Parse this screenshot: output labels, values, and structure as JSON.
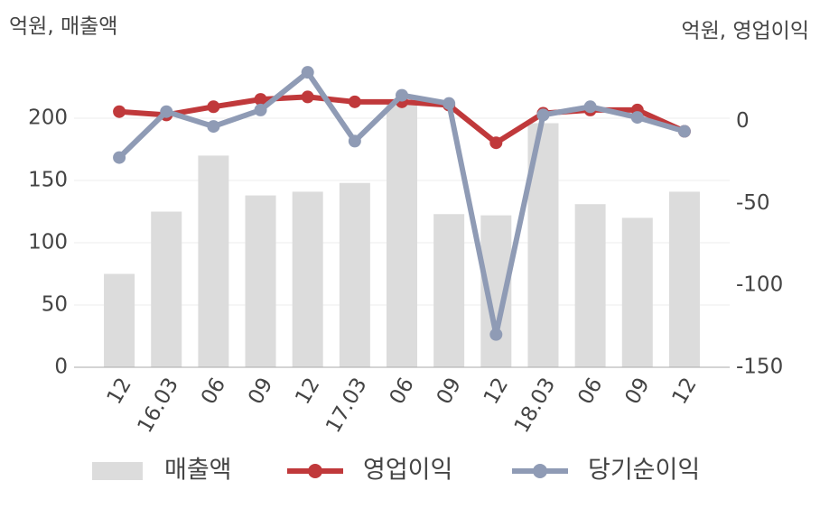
{
  "chart_data": {
    "type": "bar",
    "y_label": "억원, 매출액",
    "y2_label": "억원, 영업이익",
    "categories": [
      "12",
      "16.03",
      "06",
      "09",
      "12",
      "17.03",
      "06",
      "09",
      "12",
      "18.03",
      "06",
      "09",
      "12"
    ],
    "series": [
      {
        "name": "매출액",
        "type": "bar",
        "color": "#dcdcdc",
        "values": [
          75,
          125,
          170,
          138,
          141,
          148,
          212,
          123,
          122,
          196,
          131,
          120,
          141
        ]
      },
      {
        "name": "영업이익",
        "type": "line",
        "axis": "y2",
        "color": "#c0393b",
        "values": [
          6,
          4,
          9,
          13.5,
          15,
          12,
          12,
          10,
          -13,
          5,
          7,
          7,
          -6
        ]
      },
      {
        "name": "당기순이익",
        "type": "line",
        "axis": "y2",
        "color": "#8f9bb5",
        "values": [
          -22,
          6,
          -3,
          7,
          30,
          -12,
          16,
          11,
          -130,
          4,
          9,
          2.5,
          -6
        ]
      }
    ],
    "ylim": [
      0,
      250
    ],
    "yticks": [
      0,
      50,
      100,
      150,
      200
    ],
    "y2lim": [
      -150,
      40
    ],
    "y2ticks": [
      -150,
      -100,
      -50,
      0
    ],
    "grid": true,
    "legend": "bottom"
  }
}
